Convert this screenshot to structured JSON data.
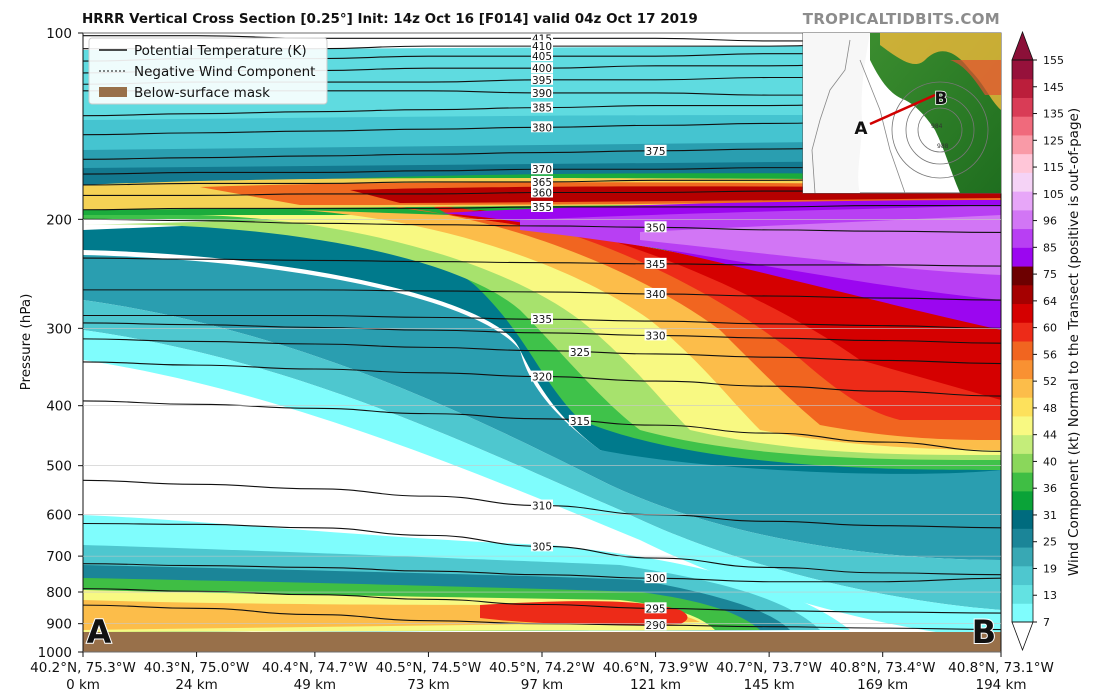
{
  "header": {
    "title": "HRRR Vertical Cross Section [0.25°] Init: 14z Oct 16 [F014] valid 04z Oct 17 2019",
    "brand": "TROPICALTIDBITS.COM"
  },
  "legend": {
    "items": [
      {
        "label": "Potential Temperature (K)",
        "style": "solid"
      },
      {
        "label": "Negative Wind Component",
        "style": "dashed"
      },
      {
        "label": "Below-surface mask",
        "style": "patch",
        "color": "#98704a"
      }
    ]
  },
  "endpoints": {
    "start": "A",
    "end": "B"
  },
  "chart_data": {
    "type": "heatmap",
    "title": "HRRR Vertical Cross Section [0.25°] Init: 14z Oct 16 [F014] valid 04z Oct 17 2019",
    "ylabel": "Pressure (hPa)",
    "y_scale": "log",
    "ylim": [
      1000,
      100
    ],
    "yticks": [
      100,
      200,
      300,
      400,
      500,
      600,
      700,
      800,
      900,
      1000
    ],
    "xticks": [
      {
        "coord": "40.2°N, 75.3°W",
        "km": "0 km"
      },
      {
        "coord": "40.3°N, 75.0°W",
        "km": "24 km"
      },
      {
        "coord": "40.4°N, 74.7°W",
        "km": "49 km"
      },
      {
        "coord": "40.5°N, 74.5°W",
        "km": "73 km"
      },
      {
        "coord": "40.5°N, 74.2°W",
        "km": "97 km"
      },
      {
        "coord": "40.6°N, 73.9°W",
        "km": "121 km"
      },
      {
        "coord": "40.7°N, 73.7°W",
        "km": "145 km"
      },
      {
        "coord": "40.8°N, 73.4°W",
        "km": "169 km"
      },
      {
        "coord": "40.8°N, 73.1°W",
        "km": "194 km"
      }
    ],
    "x_km": [
      0,
      24,
      49,
      73,
      97,
      121,
      145,
      169,
      194
    ],
    "theta_contours": [
      {
        "value": 415,
        "p": [
          101,
          101,
          102,
          102,
          102,
          102,
          103,
          103,
          103
        ],
        "label_km": 97
      },
      {
        "value": 410,
        "p": [
          106,
          106,
          106,
          105,
          105,
          105,
          105,
          104,
          104
        ],
        "label_km": 97
      },
      {
        "value": 405,
        "p": [
          111,
          110,
          110,
          109,
          109,
          109,
          108,
          108,
          107
        ],
        "label_km": 97
      },
      {
        "value": 400,
        "p": [
          116,
          115,
          115,
          114,
          114,
          113,
          113,
          112,
          112
        ],
        "label_km": 97
      },
      {
        "value": 395,
        "p": [
          121,
          120,
          120,
          120,
          119,
          119,
          118,
          118,
          117
        ],
        "label_km": 97
      },
      {
        "value": 390,
        "p": [
          124,
          124,
          124,
          124,
          125,
          125,
          126,
          126,
          127
        ],
        "label_km": 97
      },
      {
        "value": 385,
        "p": [
          136,
          135,
          134,
          133,
          132,
          131,
          131,
          130,
          130
        ],
        "label_km": 97
      },
      {
        "value": 380,
        "p": [
          146,
          145,
          144,
          143,
          142,
          141,
          140,
          139,
          138
        ],
        "label_km": 97
      },
      {
        "value": 375,
        "p": [
          160,
          159,
          158,
          157,
          156,
          155,
          154,
          153,
          152
        ],
        "label_km": 121
      },
      {
        "value": 370,
        "p": [
          169,
          168,
          168,
          167,
          166,
          166,
          165,
          165,
          164
        ],
        "label_km": 97
      },
      {
        "value": 365,
        "p": [
          176,
          175,
          175,
          174,
          174,
          173,
          173,
          172,
          172
        ],
        "label_km": 97
      },
      {
        "value": 360,
        "p": [
          183,
          183,
          182,
          182,
          181,
          181,
          180,
          180,
          180
        ],
        "label_km": 97
      },
      {
        "value": 355,
        "p": [
          193,
          192,
          192,
          192,
          191,
          191,
          191,
          190,
          190
        ],
        "label_km": 97
      },
      {
        "value": 350,
        "p": [
          200,
          201,
          203,
          204,
          205,
          206,
          208,
          209,
          210
        ],
        "label_km": 121
      },
      {
        "value": 345,
        "p": [
          231,
          232,
          233,
          234,
          235,
          236,
          237,
          237,
          238
        ],
        "label_km": 121
      },
      {
        "value": 340,
        "p": [
          260,
          260,
          260,
          261,
          262,
          264,
          266,
          268,
          270
        ],
        "label_km": 121
      },
      {
        "value": 335,
        "p": [
          286,
          286,
          286,
          288,
          290,
          292,
          295,
          297,
          300
        ],
        "label_km": 97
      },
      {
        "value": 330,
        "p": [
          294,
          296,
          299,
          302,
          305,
          308,
          311,
          314,
          317
        ],
        "label_km": 121
      },
      {
        "value": 325,
        "p": [
          312,
          315,
          318,
          322,
          326,
          330,
          334,
          338,
          342
        ],
        "label_km": 105
      },
      {
        "value": 320,
        "p": [
          340,
          344,
          349,
          354,
          359,
          365,
          372,
          379,
          386
        ],
        "label_km": 97
      },
      {
        "value": 315,
        "p": [
          393,
          398,
          404,
          412,
          420,
          430,
          443,
          458,
          474
        ],
        "label_km": 105
      },
      {
        "value": 310,
        "p": [
          528,
          536,
          545,
          560,
          580,
          600,
          615,
          625,
          630
        ],
        "label_km": 97
      },
      {
        "value": 305,
        "p": [
          620,
          622,
          630,
          648,
          675,
          705,
          730,
          745,
          750
        ],
        "label_km": 97
      },
      {
        "value": 300,
        "p": [
          720,
          725,
          730,
          740,
          750,
          760,
          770,
          770,
          760
        ],
        "label_km": 121
      },
      {
        "value": 295,
        "p": [
          790,
          798,
          808,
          822,
          838,
          850,
          858,
          862,
          865
        ],
        "label_km": 121
      },
      {
        "value": 290,
        "p": [
          840,
          850,
          870,
          890,
          900,
          905,
          910,
          915,
          920
        ],
        "label_km": 121
      }
    ],
    "colorbar": {
      "label": "Wind Component (kt) Normal to the Transect (positive is out-of-page)",
      "ticks": [
        7,
        13,
        19,
        25,
        31,
        36,
        40,
        44,
        48,
        52,
        56,
        60,
        64,
        75,
        85,
        96,
        105,
        115,
        125,
        135,
        145,
        155
      ],
      "colors": [
        "#7ffdfd",
        "#63e2e2",
        "#4ec7cf",
        "#38a8b4",
        "#1b8598",
        "#006b7e",
        "#0aa338",
        "#3fbe44",
        "#8ad75b",
        "#c4ed7a",
        "#f8f982",
        "#fde15c",
        "#fcbd4a",
        "#f99132",
        "#f16520",
        "#ed2b18",
        "#d50000",
        "#a50000",
        "#6d0000",
        "#9b06f0",
        "#b83ff3",
        "#d276f5",
        "#e7a6f8",
        "#f5d3f6",
        "#ffc6d8",
        "#f99aa7",
        "#f06a7c",
        "#d93c56",
        "#bb1e3b",
        "#96113b"
      ]
    },
    "inset_map": {
      "labels": [
        "A",
        "B"
      ],
      "isobars": [
        "984",
        "988"
      ]
    }
  }
}
